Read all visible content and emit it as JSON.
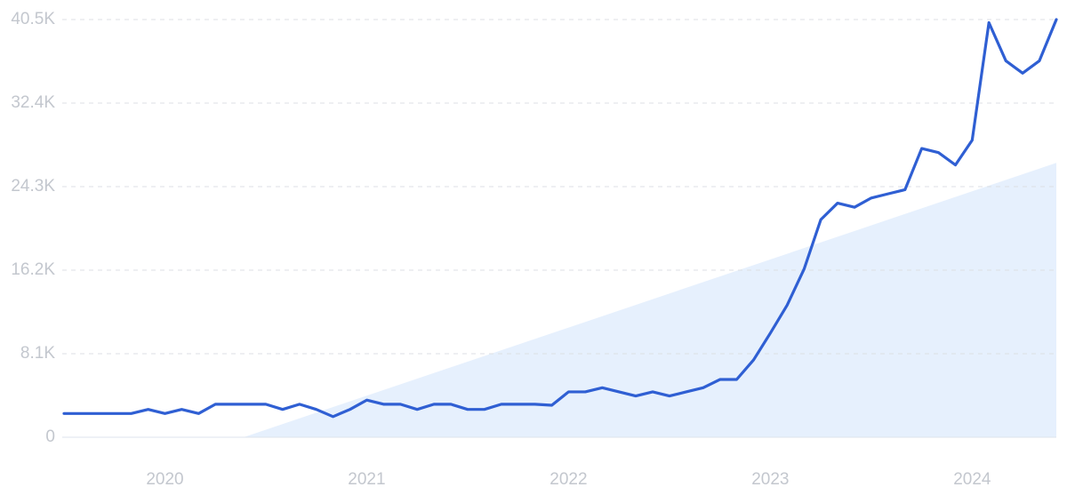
{
  "chart_data": {
    "type": "line",
    "x": [
      2019.5,
      2019.583,
      2019.667,
      2019.75,
      2019.833,
      2019.917,
      2020,
      2020.083,
      2020.167,
      2020.25,
      2020.333,
      2020.417,
      2020.5,
      2020.583,
      2020.667,
      2020.75,
      2020.833,
      2020.917,
      2021,
      2021.083,
      2021.167,
      2021.25,
      2021.333,
      2021.417,
      2021.5,
      2021.583,
      2021.667,
      2021.75,
      2021.833,
      2021.917,
      2022,
      2022.083,
      2022.167,
      2022.25,
      2022.333,
      2022.417,
      2022.5,
      2022.583,
      2022.667,
      2022.75,
      2022.833,
      2022.917,
      2023,
      2023.083,
      2023.167,
      2023.25,
      2023.333,
      2023.417,
      2023.5,
      2023.583,
      2023.667,
      2023.75,
      2023.833,
      2023.917,
      2024,
      2024.083,
      2024.167,
      2024.25,
      2024.333,
      2024.417
    ],
    "series": [
      {
        "color": "#2f5fd3",
        "values": [
          2300,
          2300,
          2300,
          2300,
          2300,
          2700,
          2300,
          2700,
          2300,
          3200,
          3200,
          3200,
          3200,
          2700,
          3200,
          2700,
          2000,
          2700,
          3600,
          3200,
          3200,
          2700,
          3200,
          3200,
          2700,
          2700,
          3200,
          3200,
          3200,
          3100,
          4400,
          4400,
          4800,
          4400,
          4000,
          4400,
          4000,
          4400,
          4800,
          5600,
          5600,
          7500,
          10100,
          12800,
          16300,
          21100,
          22700,
          22300,
          23200,
          23600,
          24000,
          28000,
          27600,
          26400,
          28800,
          40200,
          36500,
          35300,
          36500,
          40500
        ]
      }
    ],
    "trend": {
      "color": "#e6f0fd",
      "x": [
        2020.39,
        2024.417
      ],
      "values": [
        0,
        26600
      ]
    },
    "xlim": [
      2019.5,
      2024.417
    ],
    "xticks": [
      2020,
      2021,
      2022,
      2023,
      2024
    ],
    "ylim": [
      0,
      40500
    ],
    "yticks": [
      0,
      {
        "value": 8100,
        "label": "8.1K"
      },
      {
        "value": 16200,
        "label": "16.2K"
      },
      {
        "value": 24300,
        "label": "24.3K"
      },
      {
        "value": 32400,
        "label": "32.4K"
      },
      {
        "value": 40500,
        "label": "40.5K"
      }
    ],
    "grid": true
  }
}
